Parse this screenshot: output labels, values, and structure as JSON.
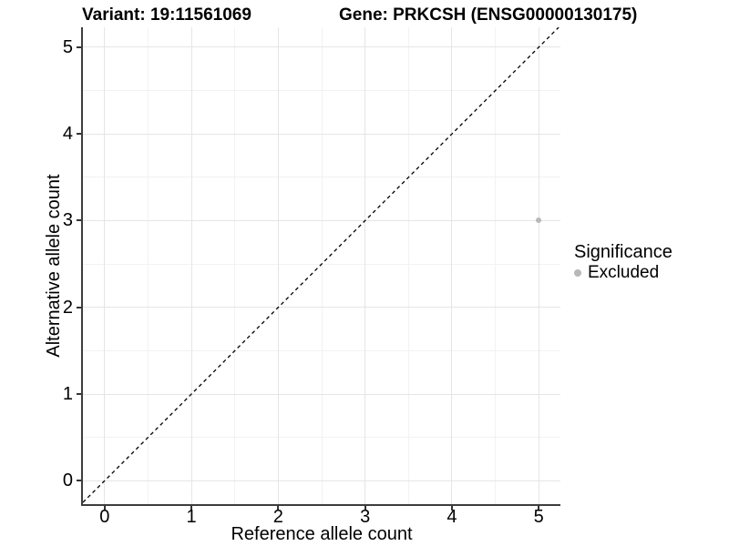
{
  "titles": {
    "variant": "Variant: 19:11561069",
    "gene": "Gene: PRKCSH (ENSG00000130175)"
  },
  "chart_data": {
    "type": "scatter",
    "xlabel": "Reference allele count",
    "ylabel": "Alternative allele count",
    "xlim": [
      -0.25,
      5.25
    ],
    "ylim": [
      -0.27,
      5.23
    ],
    "x_ticks": [
      0,
      1,
      2,
      3,
      4,
      5
    ],
    "y_ticks": [
      0,
      1,
      2,
      3,
      4,
      5
    ],
    "grid": {
      "major": true,
      "minor": true
    },
    "series": [
      {
        "name": "Excluded",
        "marker": "circle",
        "color": "#b8b8b8",
        "points": [
          {
            "x": 5,
            "y": 3
          }
        ]
      }
    ],
    "reference_line": {
      "kind": "identity y=x",
      "slope": 1,
      "intercept": 0,
      "style": "dashed",
      "color": "#000000"
    },
    "legend": {
      "title": "Significance",
      "position": "right",
      "entries": [
        {
          "label": "Excluded",
          "color": "#b8b8b8"
        }
      ]
    }
  },
  "colors": {
    "background": "#ffffff",
    "grid_major": "#e5e5e5",
    "grid_minor": "#f2f2f2",
    "axis_line": "#3d3d3d",
    "tick": "#333333",
    "text": "#000000"
  }
}
